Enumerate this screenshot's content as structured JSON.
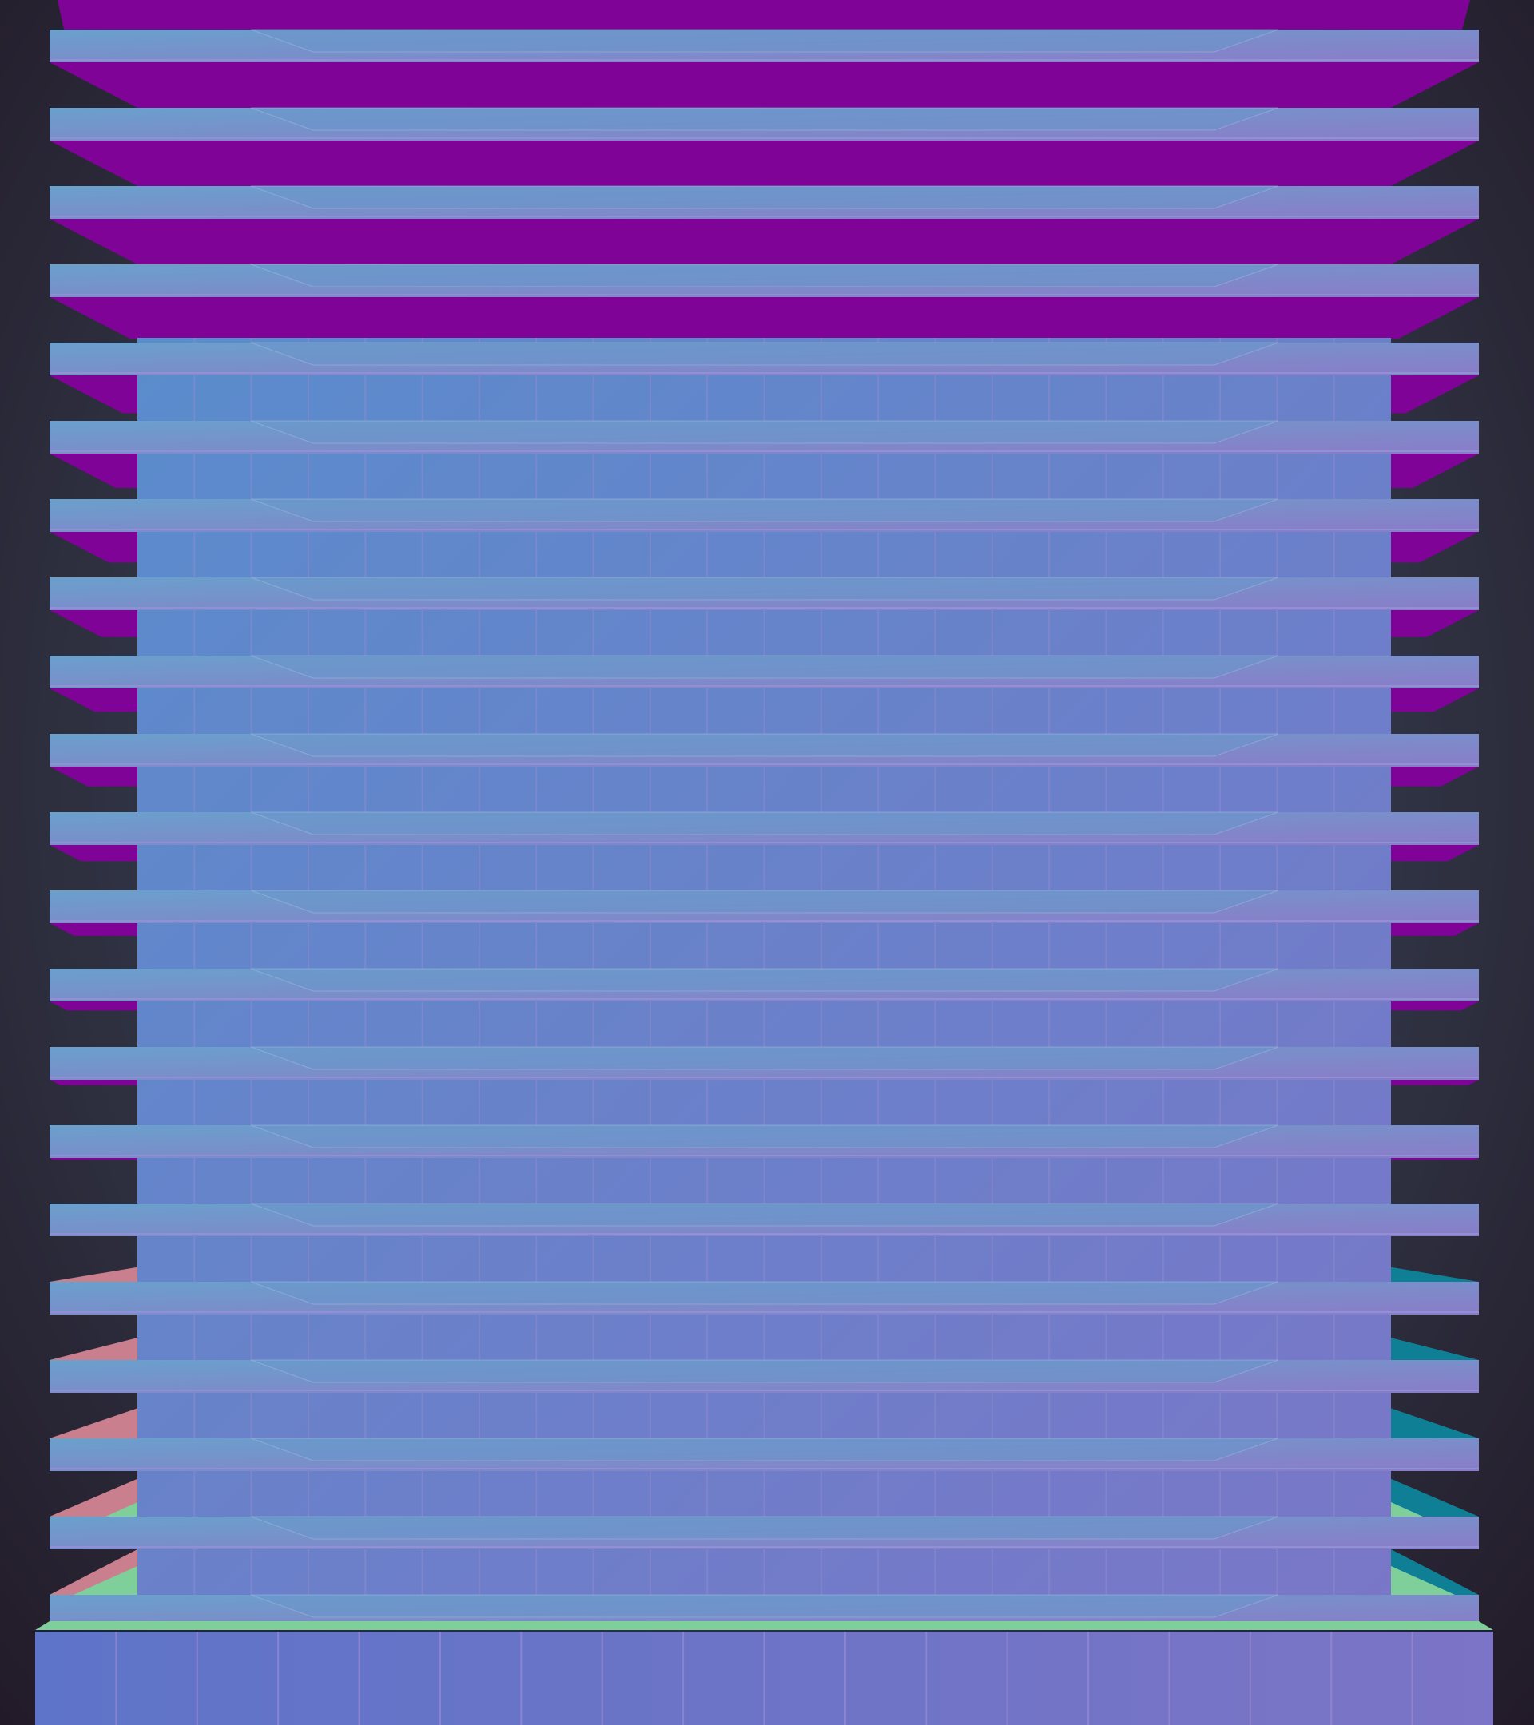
{
  "scene": {
    "subject": "building",
    "floors": 21,
    "window_columns": 22,
    "colors": {
      "background": "#343b4c",
      "purple_underside": "#7e0396",
      "slab_top": "#6f8fcc",
      "slab_face": "#7a84c8",
      "core": "#6a7cc8",
      "pink_side": "#c97f8e",
      "teal_side": "#0f7f96",
      "green_edge": "#7fcf9a",
      "base": "#6672c6"
    }
  }
}
